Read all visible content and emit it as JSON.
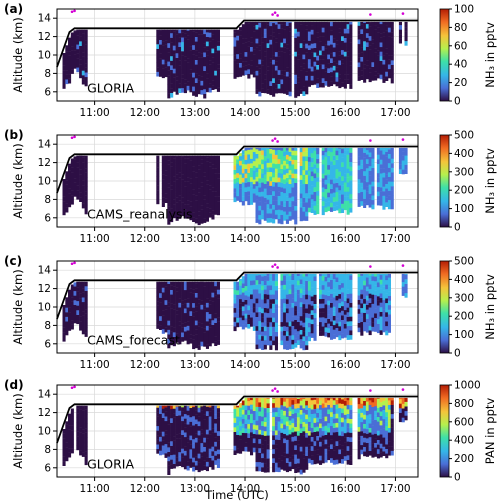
{
  "figure": {
    "xlabel": "Time (UTC)",
    "panels": [
      {
        "label": "(a)",
        "annotation": "GLORIA",
        "cbar_label": "NH₃ in pptv",
        "cbar_ticks": [
          "0",
          "20",
          "40",
          "60",
          "80",
          "100"
        ],
        "vmax": 100,
        "scheme": "low"
      },
      {
        "label": "(b)",
        "annotation": "CAMS_reanalysis",
        "cbar_label": "NH₃ in pptv",
        "cbar_ticks": [
          "0",
          "100",
          "200",
          "300",
          "400",
          "500"
        ],
        "vmax": 500,
        "scheme": "high"
      },
      {
        "label": "(c)",
        "annotation": "CAMS_forecast",
        "cbar_label": "NH₃ in pptv",
        "cbar_ticks": [
          "0",
          "100",
          "200",
          "300",
          "400",
          "500"
        ],
        "vmax": 500,
        "scheme": "mid"
      },
      {
        "label": "(d)",
        "annotation": "GLORIA",
        "cbar_label": "PAN in pptv",
        "cbar_ticks": [
          "0",
          "200",
          "400",
          "600",
          "800",
          "1000"
        ],
        "vmax": 1000,
        "scheme": "pan"
      }
    ]
  },
  "chart_data": {
    "type": "heatmap",
    "colormap": [
      "#2d0f45",
      "#4a6ed6",
      "#35b6e8",
      "#3ee0a8",
      "#b6f04d",
      "#f4c43b",
      "#f06b22",
      "#b31d05"
    ],
    "axes": {
      "xlabel": "Time (UTC)",
      "ylabel": "Altitude (km)",
      "x_ticks": [
        "11:00",
        "12:00",
        "13:00",
        "14:00",
        "15:00",
        "16:00",
        "17:00"
      ],
      "y_ticks": [
        "6",
        "8",
        "10",
        "12",
        "14"
      ],
      "xlim_hours": [
        10.25,
        17.45
      ],
      "ylim_km": [
        5,
        15
      ],
      "grid": true
    },
    "flight_altitude": {
      "x": [
        10.25,
        10.5,
        10.6,
        13.83,
        13.98,
        17.45
      ],
      "y": [
        8.7,
        12.5,
        12.9,
        12.9,
        13.75,
        13.75
      ]
    },
    "data_coverage_hours": [
      [
        10.35,
        10.6
      ],
      [
        10.6,
        10.85
      ],
      [
        12.2,
        13.45
      ],
      [
        13.75,
        15.2
      ],
      [
        15.2,
        16.1
      ],
      [
        16.2,
        16.95
      ],
      [
        17.05,
        17.2
      ]
    ],
    "panels": [
      {
        "label": "(a)",
        "annotation": "GLORIA",
        "quantity": "NH3",
        "unit": "pptv",
        "clim": [
          0,
          100
        ]
      },
      {
        "label": "(b)",
        "annotation": "CAMS_reanalysis",
        "quantity": "NH3",
        "unit": "pptv",
        "clim": [
          0,
          500
        ]
      },
      {
        "label": "(c)",
        "annotation": "CAMS_forecast",
        "quantity": "NH3",
        "unit": "pptv",
        "clim": [
          0,
          500
        ]
      },
      {
        "label": "(d)",
        "annotation": "GLORIA",
        "quantity": "PAN",
        "unit": "pptv",
        "clim": [
          0,
          1000
        ]
      }
    ]
  }
}
